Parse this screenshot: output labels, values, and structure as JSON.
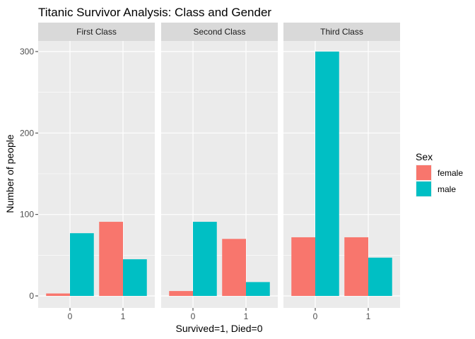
{
  "chart_data": {
    "type": "bar",
    "title": "Titanic Survivor Analysis: Class and Gender",
    "xlabel": "Survived=1, Died=0",
    "ylabel": "Number of people",
    "categories": [
      "0",
      "1"
    ],
    "ylim": [
      0,
      300
    ],
    "yticks": [
      0,
      100,
      200,
      300
    ],
    "grid": true,
    "legend": {
      "title": "Sex",
      "position": "right",
      "entries": [
        "female",
        "male"
      ]
    },
    "facets": [
      {
        "label": "First Class",
        "series": [
          {
            "name": "female",
            "values": [
              3,
              91
            ]
          },
          {
            "name": "male",
            "values": [
              77,
              45
            ]
          }
        ]
      },
      {
        "label": "Second Class",
        "series": [
          {
            "name": "female",
            "values": [
              6,
              70
            ]
          },
          {
            "name": "male",
            "values": [
              91,
              17
            ]
          }
        ]
      },
      {
        "label": "Third Class",
        "series": [
          {
            "name": "female",
            "values": [
              72,
              72
            ]
          },
          {
            "name": "male",
            "values": [
              300,
              47
            ]
          }
        ]
      }
    ]
  },
  "colors": {
    "female": "#F8766D",
    "male": "#00BFC4",
    "panel_bg": "#EBEBEB",
    "strip_bg": "#D9D9D9",
    "grid": "#FFFFFF"
  }
}
